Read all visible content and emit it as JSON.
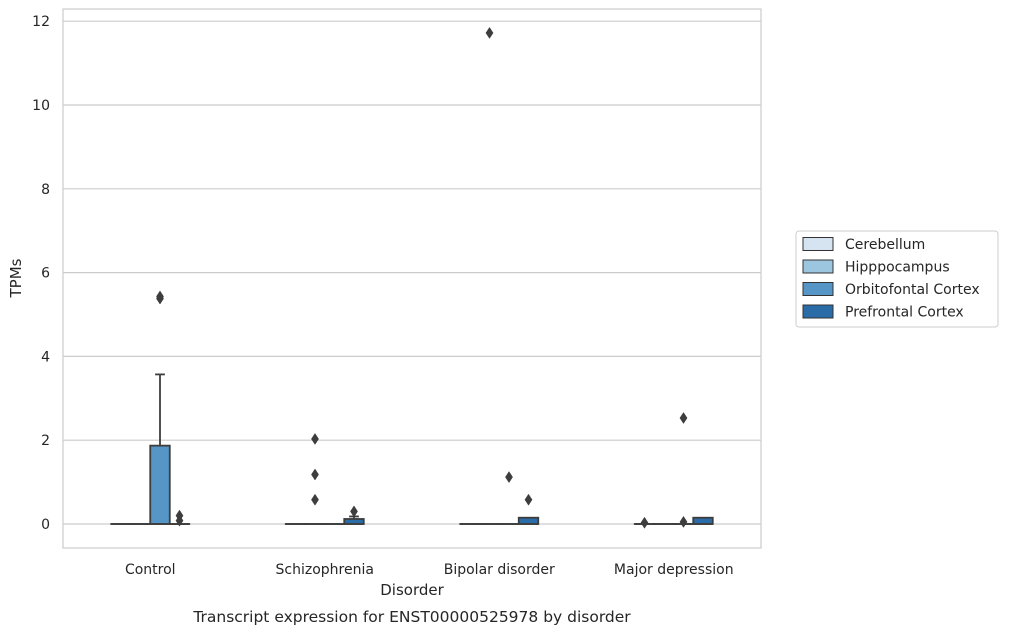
{
  "chart_data": {
    "type": "box",
    "title": "",
    "xlabel": "Disorder",
    "ylabel": "TPMs",
    "caption": "Transcript expression for ENST00000525978 by disorder",
    "categories": [
      "Control",
      "Schizophrenia",
      "Bipolar disorder",
      "Major depression"
    ],
    "yticks": [
      "0",
      "2",
      "4",
      "6",
      "8",
      "10",
      "12"
    ],
    "ylim": [
      -0.55,
      12.3
    ],
    "grid": true,
    "legend_position": "right",
    "series": [
      {
        "name": "Cerebellum",
        "color": "#d6e4f2",
        "boxes": [
          {
            "min": 0,
            "q1": 0,
            "median": 0,
            "q3": 0,
            "max": 0,
            "outliers": []
          },
          {
            "min": 0,
            "q1": 0,
            "median": 0,
            "q3": 0,
            "max": 0,
            "outliers": []
          },
          {
            "min": 0,
            "q1": 0,
            "median": 0,
            "q3": 0,
            "max": 0,
            "outliers": []
          },
          {
            "min": 0,
            "q1": 0,
            "median": 0,
            "q3": 0,
            "max": 0,
            "outliers": [
              0.03
            ]
          }
        ]
      },
      {
        "name": "Hipppocampus",
        "color": "#9cc5df",
        "boxes": [
          {
            "min": 0,
            "q1": 0,
            "median": 0,
            "q3": 0,
            "max": 0,
            "outliers": []
          },
          {
            "min": 0,
            "q1": 0,
            "median": 0,
            "q3": 0,
            "max": 0,
            "outliers": [
              0.58,
              1.18,
              2.03
            ]
          },
          {
            "min": 0,
            "q1": 0,
            "median": 0,
            "q3": 0,
            "max": 0,
            "outliers": [
              11.72
            ]
          },
          {
            "min": 0,
            "q1": 0,
            "median": 0,
            "q3": 0,
            "max": 0,
            "outliers": []
          }
        ]
      },
      {
        "name": "Orbitofontal Cortex",
        "color": "#5596c7",
        "boxes": [
          {
            "min": 0,
            "q1": 0,
            "median": 0,
            "q3": 1.87,
            "max": 3.57,
            "outliers": [
              5.38,
              5.43
            ]
          },
          {
            "min": 0,
            "q1": 0,
            "median": 0,
            "q3": 0,
            "max": 0,
            "outliers": []
          },
          {
            "min": 0,
            "q1": 0,
            "median": 0,
            "q3": 0,
            "max": 0,
            "outliers": [
              1.12
            ]
          },
          {
            "min": 0,
            "q1": 0,
            "median": 0,
            "q3": 0,
            "max": 0,
            "outliers": [
              0.05,
              2.53
            ]
          }
        ]
      },
      {
        "name": "Prefrontal Cortex",
        "color": "#2a6ca8",
        "boxes": [
          {
            "min": 0,
            "q1": 0,
            "median": 0,
            "q3": 0,
            "max": 0,
            "outliers": [
              0.08,
              0.2
            ]
          },
          {
            "min": 0,
            "q1": 0,
            "median": 0,
            "q3": 0.12,
            "max": 0.18,
            "outliers": [
              0.3
            ]
          },
          {
            "min": 0,
            "q1": 0,
            "median": 0,
            "q3": 0.15,
            "max": 0.15,
            "outliers": [
              0.58
            ]
          },
          {
            "min": 0,
            "q1": 0,
            "median": 0,
            "q3": 0.15,
            "max": 0.15,
            "outliers": []
          }
        ]
      }
    ]
  }
}
